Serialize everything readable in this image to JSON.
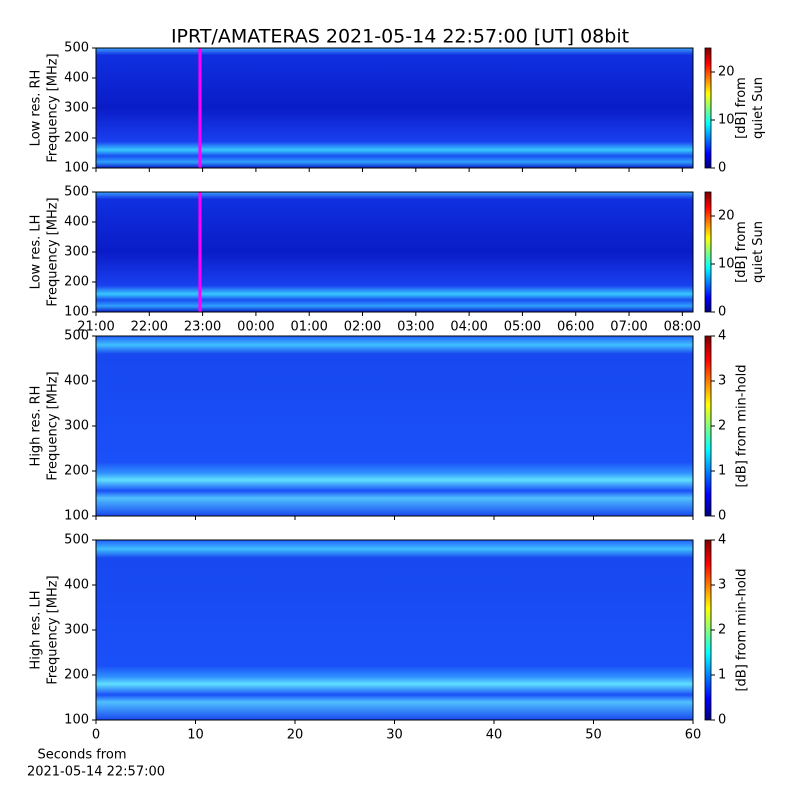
{
  "chart_data": [
    {
      "type": "spectrogram",
      "title": "IPRT/AMATERAS 2021-05-14 22:57:00 [UT]   08bit",
      "ylabel": [
        "Low res. RH",
        "Frequency [MHz]"
      ],
      "ylim": [
        100,
        500
      ],
      "yticks": [
        100,
        200,
        300,
        400,
        500
      ],
      "xlim": [
        21,
        32.2
      ],
      "xticks": [
        21,
        22,
        23,
        24,
        25,
        26,
        27,
        28,
        29,
        30,
        31,
        32
      ],
      "xticklabels": false,
      "marker_x": 22.95,
      "marker_color": "#ff00ff",
      "colorbar_label": [
        "[dB] from",
        "quiet Sun"
      ],
      "clim": [
        0,
        25
      ],
      "cticks": [
        0,
        10,
        20
      ]
    },
    {
      "type": "spectrogram",
      "ylabel": [
        "Low res. LH",
        "Frequency [MHz]"
      ],
      "ylim": [
        100,
        500
      ],
      "yticks": [
        100,
        200,
        300,
        400,
        500
      ],
      "xlim": [
        21,
        32.2
      ],
      "xticks": [
        {
          "value": 21,
          "label": "21:00"
        },
        {
          "value": 22,
          "label": "22:00"
        },
        {
          "value": 23,
          "label": "23:00"
        },
        {
          "value": 24,
          "label": "00:00"
        },
        {
          "value": 25,
          "label": "01:00"
        },
        {
          "value": 26,
          "label": "02:00"
        },
        {
          "value": 27,
          "label": "03:00"
        },
        {
          "value": 28,
          "label": "04:00"
        },
        {
          "value": 29,
          "label": "05:00"
        },
        {
          "value": 30,
          "label": "06:00"
        },
        {
          "value": 31,
          "label": "07:00"
        },
        {
          "value": 32,
          "label": "08:00"
        }
      ],
      "xticklabels": true,
      "marker_x": 22.95,
      "marker_color": "#ff00ff",
      "colorbar_label": [
        "[dB] from",
        "quiet Sun"
      ],
      "clim": [
        0,
        25
      ],
      "cticks": [
        0,
        10,
        20
      ]
    },
    {
      "type": "spectrogram",
      "ylabel": [
        "High res. RH",
        "Frequency [MHz]"
      ],
      "ylim": [
        100,
        500
      ],
      "yticks": [
        100,
        200,
        300,
        400,
        500
      ],
      "xlim": [
        0,
        60
      ],
      "xticks": [
        0,
        10,
        20,
        30,
        40,
        50,
        60
      ],
      "xticklabels": false,
      "colorbar_label": [
        "[dB] from min-hold"
      ],
      "clim": [
        0,
        4
      ],
      "cticks": [
        0,
        1,
        2,
        3,
        4
      ]
    },
    {
      "type": "spectrogram",
      "ylabel": [
        "High res. LH",
        "Frequency [MHz]"
      ],
      "ylim": [
        100,
        500
      ],
      "yticks": [
        100,
        200,
        300,
        400,
        500
      ],
      "xlim": [
        0,
        60
      ],
      "xticks": [
        0,
        10,
        20,
        30,
        40,
        50,
        60
      ],
      "xticklabels": true,
      "xlabel": [
        "Seconds from",
        "2021-05-14 22:57:00"
      ],
      "colorbar_label": [
        "[dB] from min-hold"
      ],
      "clim": [
        0,
        4
      ],
      "cticks": [
        0,
        1,
        2,
        3,
        4
      ]
    }
  ]
}
